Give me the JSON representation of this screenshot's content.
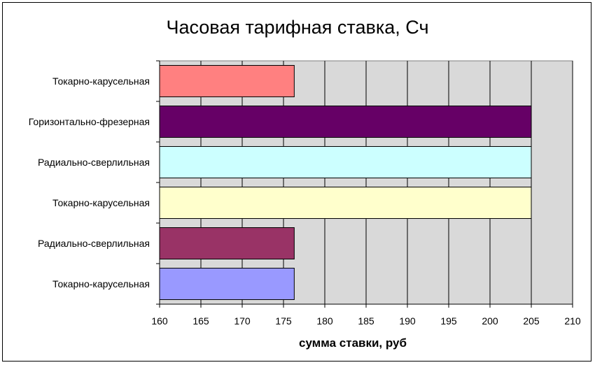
{
  "chart_data": {
    "type": "bar",
    "orientation": "horizontal",
    "title": "Часовая тарифная ставка, Сч",
    "xlabel": "сумма ставки, руб",
    "ylabel": "",
    "categories": [
      "Токарно-карусельная",
      "Горизонтально-фрезерная",
      "Радиально-сверлильная",
      "Токарно-карусельная",
      "Радиально-сверлильная",
      "Токарно-карусельная"
    ],
    "values": [
      176.3,
      205.0,
      205.0,
      205.0,
      176.3,
      176.3
    ],
    "colors": [
      "#ff8080",
      "#660066",
      "#ccffff",
      "#ffffcc",
      "#993366",
      "#9999ff"
    ],
    "xlim": [
      160,
      210
    ],
    "xticks": [
      "160",
      "165",
      "170",
      "175",
      "180",
      "185",
      "190",
      "195",
      "200",
      "205",
      "210"
    ],
    "grid": true,
    "plot_background": "#d9d9d9",
    "legend": "none"
  }
}
